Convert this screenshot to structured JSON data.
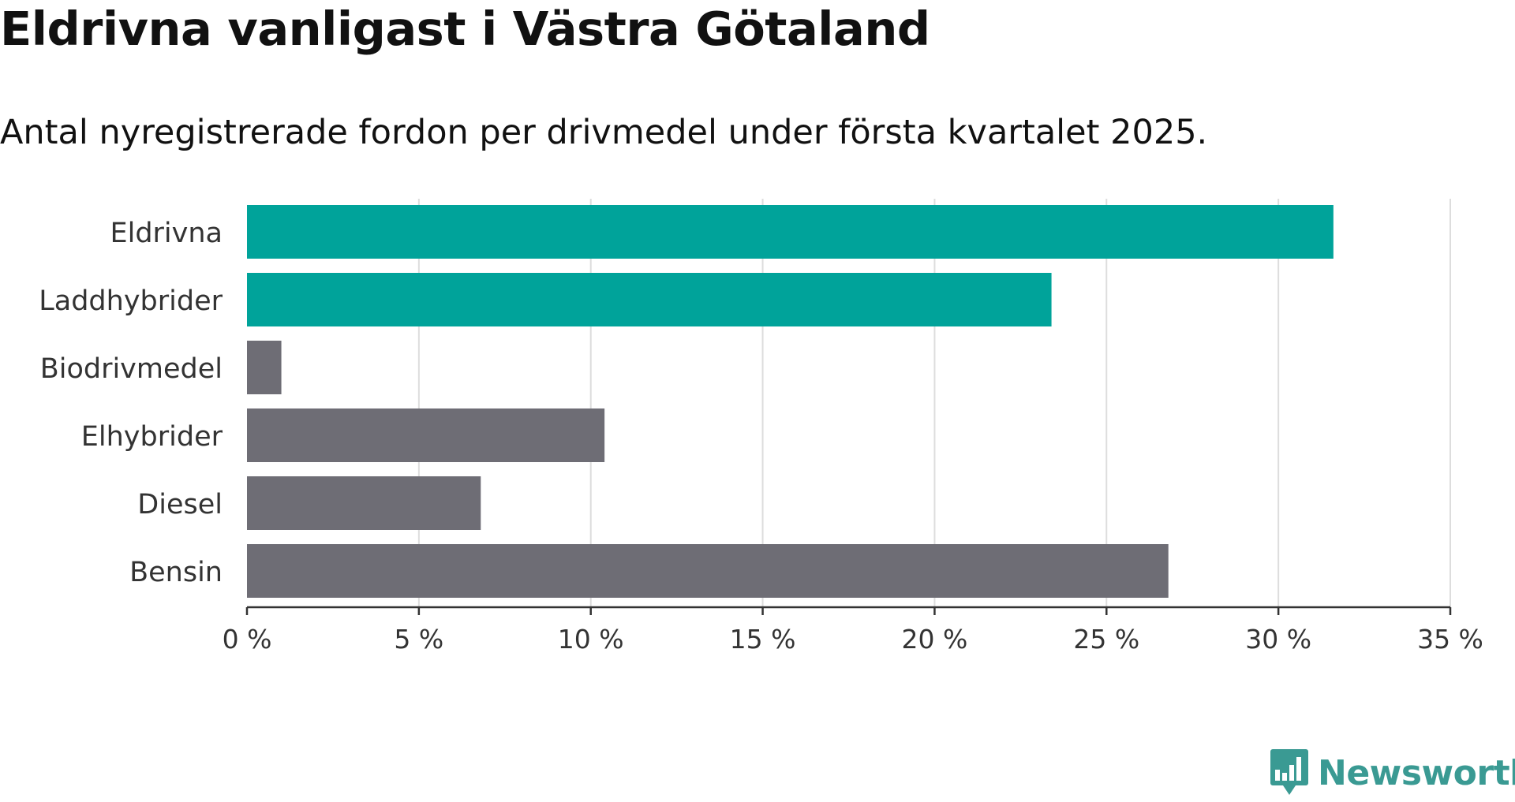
{
  "header": {
    "title": "Eldrivna vanligast i Västra Götaland",
    "subtitle": "Antal nyregistrerade fordon per drivmedel under första kvartalet 2025."
  },
  "logo": {
    "text": "Newsworthy",
    "icon": "newsworthy-bar-chart-icon",
    "color": "#3a9a93"
  },
  "chart_data": {
    "type": "bar",
    "orientation": "horizontal",
    "categories": [
      "Eldrivna",
      "Laddhybrider",
      "Biodrivmedel",
      "Elhybrider",
      "Diesel",
      "Bensin"
    ],
    "values": [
      31.6,
      23.4,
      1.0,
      10.4,
      6.8,
      26.8
    ],
    "colors": [
      "#00a39a",
      "#00a39a",
      "#6e6d75",
      "#6e6d75",
      "#6e6d75",
      "#6e6d75"
    ],
    "xlim": [
      0,
      35
    ],
    "xticks": [
      0,
      5,
      10,
      15,
      20,
      25,
      30,
      35
    ],
    "xtick_labels": [
      "0 %",
      "5 %",
      "10 %",
      "15 %",
      "20 %",
      "25 %",
      "30 %",
      "35 %"
    ],
    "grid": true,
    "xlabel": "",
    "ylabel": ""
  }
}
